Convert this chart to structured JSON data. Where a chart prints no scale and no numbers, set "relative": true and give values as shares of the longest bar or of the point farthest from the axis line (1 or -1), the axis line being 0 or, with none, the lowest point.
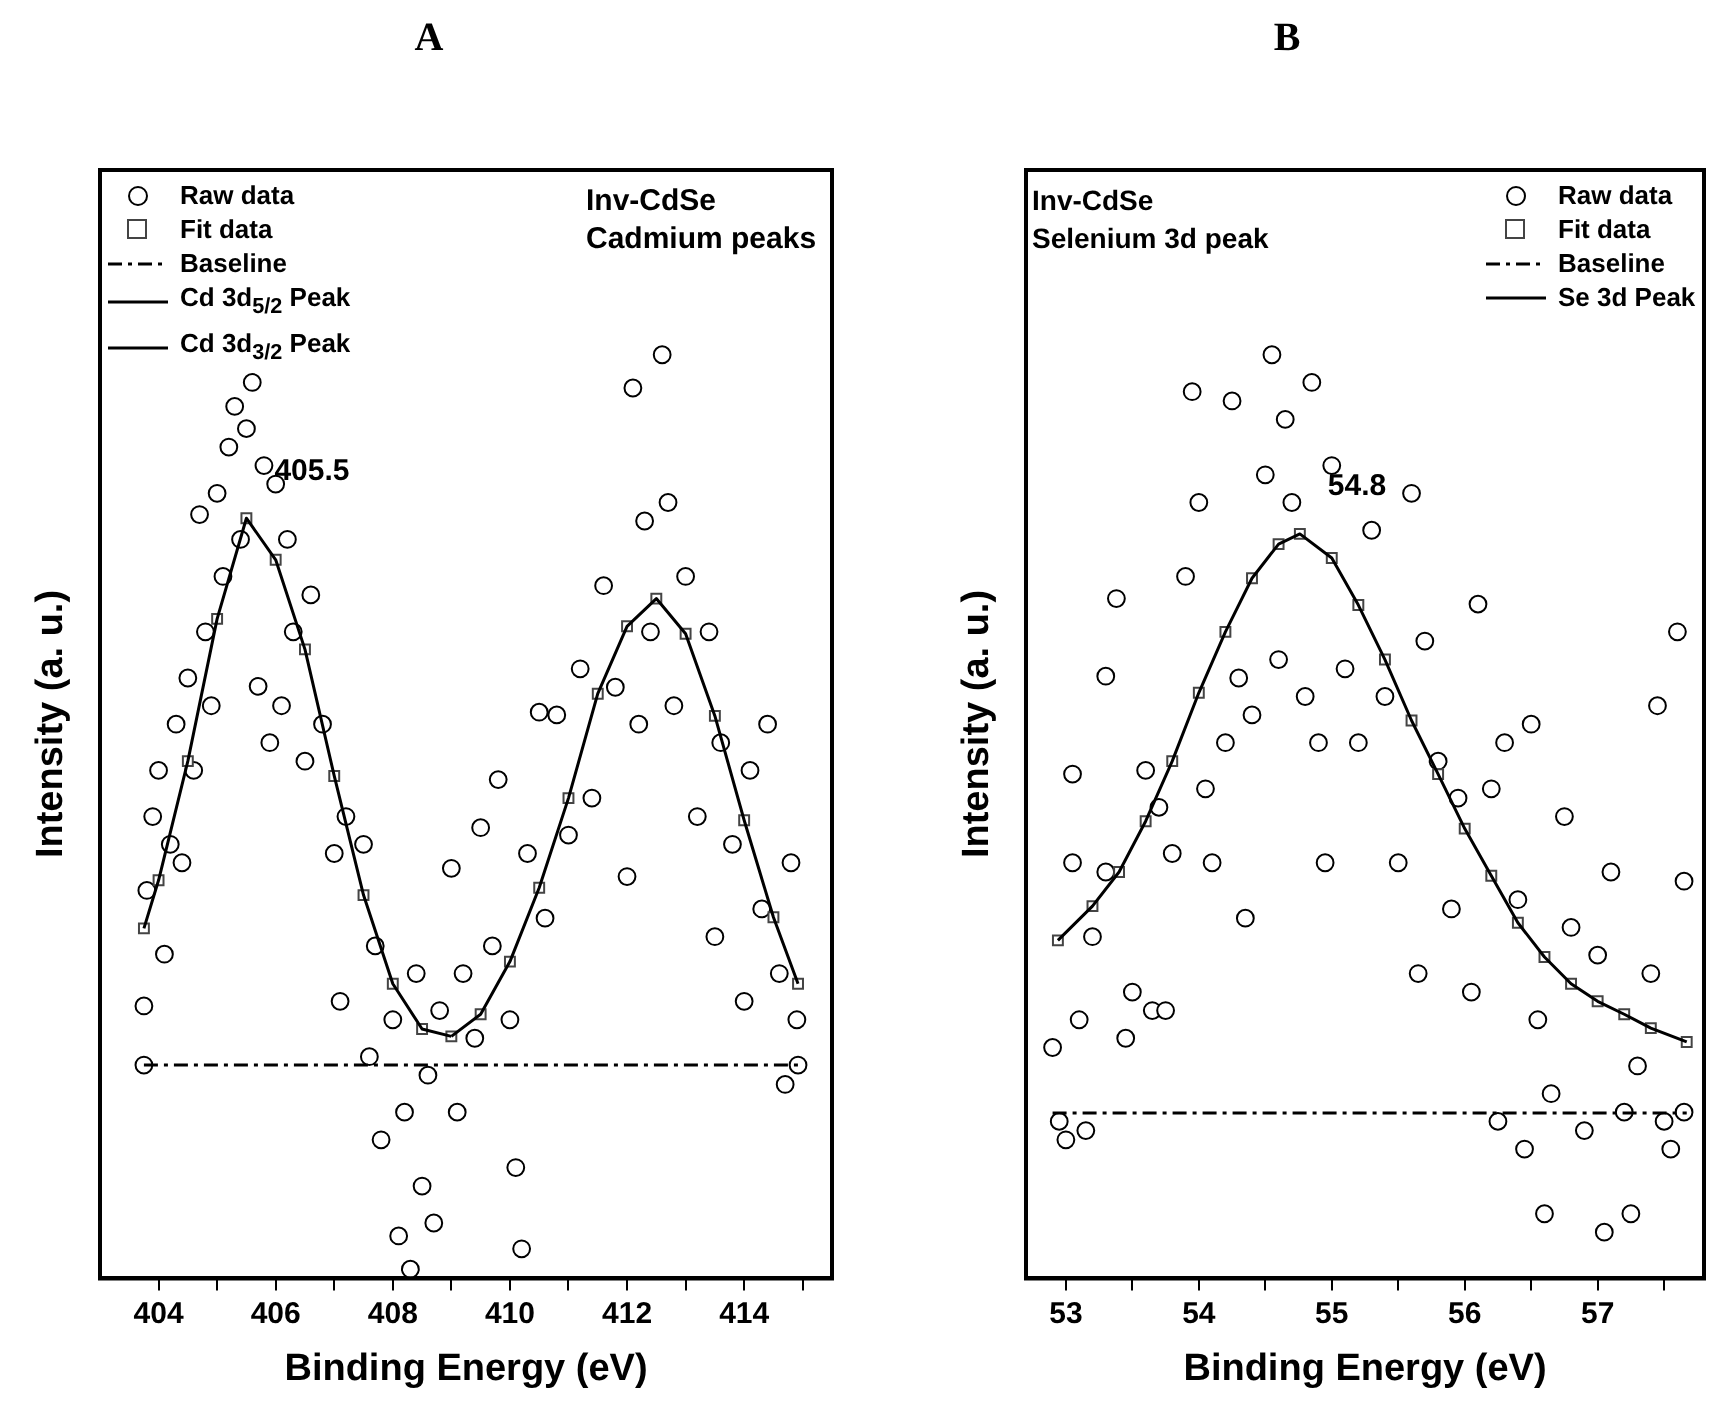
{
  "chart_data": [
    {
      "type": "scatter",
      "title": "A",
      "xlabel": "Binding Energy (eV)",
      "ylabel": "Intensity (a. u.)",
      "relative": true,
      "legend": "top left",
      "xlim": [
        403,
        415.5
      ],
      "xticks": [
        404,
        {
          "value": 405,
          "label": null
        },
        406,
        {
          "value": 407,
          "label": null
        },
        408,
        {
          "value": 409,
          "label": null
        },
        410,
        {
          "value": 411,
          "label": null
        },
        412,
        {
          "value": 413,
          "label": null
        },
        414,
        {
          "value": 415,
          "label": null
        }
      ],
      "annotations": [
        "Inv-CdSe",
        "Cadmium peaks",
        {
          "text": "405.5",
          "x": 405.5,
          "y": 0.823
        }
      ],
      "series": [
        {
          "name": "Raw data",
          "type": "scatter",
          "marker": "circle",
          "color": "#000000",
          "x": [
            403.75,
            403.75,
            403.8,
            403.9,
            404.0,
            404.1,
            404.2,
            404.3,
            404.4,
            404.5,
            404.6,
            404.7,
            404.8,
            404.9,
            405.0,
            405.1,
            405.2,
            405.3,
            405.4,
            405.5,
            405.6,
            405.7,
            405.8,
            405.9,
            406.0,
            406.1,
            406.2,
            406.3,
            406.5,
            406.6,
            406.8,
            407.0,
            407.1,
            407.2,
            407.5,
            407.6,
            407.7,
            407.8,
            408.0,
            408.1,
            408.2,
            408.3,
            408.4,
            408.5,
            408.6,
            408.7,
            408.8,
            409.0,
            409.1,
            409.2,
            409.4,
            409.5,
            409.7,
            409.8,
            410.0,
            410.1,
            410.2,
            410.3,
            410.5,
            410.6,
            410.8,
            411.0,
            411.2,
            411.4,
            411.6,
            411.8,
            412.0,
            412.1,
            412.2,
            412.3,
            412.4,
            412.6,
            412.7,
            412.8,
            413.0,
            413.2,
            413.4,
            413.5,
            413.6,
            413.8,
            414.0,
            414.1,
            414.3,
            414.4,
            414.6,
            414.7,
            414.8,
            414.9,
            414.92
          ],
          "values": [
            0.231,
            0.295,
            0.42,
            0.5,
            0.55,
            0.351,
            0.47,
            0.6,
            0.45,
            0.65,
            0.55,
            0.827,
            0.7,
            0.62,
            0.85,
            0.76,
            0.9,
            0.944,
            0.8,
            0.92,
            0.97,
            0.641,
            0.88,
            0.58,
            0.86,
            0.62,
            0.8,
            0.7,
            0.56,
            0.74,
            0.6,
            0.46,
            0.3,
            0.5,
            0.47,
            0.24,
            0.36,
            0.15,
            0.28,
            0.046,
            0.18,
            0.01,
            0.33,
            0.1,
            0.22,
            0.06,
            0.29,
            0.444,
            0.18,
            0.33,
            0.26,
            0.488,
            0.36,
            0.54,
            0.28,
            0.12,
            0.032,
            0.46,
            0.613,
            0.39,
            0.61,
            0.48,
            0.66,
            0.52,
            0.75,
            0.64,
            0.435,
            0.964,
            0.6,
            0.82,
            0.7,
            1.0,
            0.84,
            0.62,
            0.76,
            0.5,
            0.7,
            0.37,
            0.58,
            0.47,
            0.3,
            0.55,
            0.4,
            0.6,
            0.33,
            0.21,
            0.45,
            0.28,
            0.231
          ]
        },
        {
          "name": "Fit data",
          "type": "scatter",
          "marker": "square",
          "color": "#444444",
          "x": [
            403.75,
            404.0,
            404.5,
            405.0,
            405.5,
            406.0,
            406.5,
            407.0,
            407.5,
            408.0,
            408.5,
            409.0,
            409.5,
            410.0,
            410.5,
            411.0,
            411.5,
            412.0,
            412.5,
            413.0,
            413.5,
            414.0,
            414.5,
            414.92
          ],
          "values": [
            0.379,
            0.431,
            0.56,
            0.714,
            0.823,
            0.778,
            0.681,
            0.544,
            0.415,
            0.319,
            0.27,
            0.262,
            0.286,
            0.343,
            0.423,
            0.52,
            0.633,
            0.706,
            0.736,
            0.698,
            0.609,
            0.496,
            0.391,
            0.319
          ]
        },
        {
          "name": "Baseline",
          "type": "line",
          "marker": "none",
          "line_style": "dashed",
          "color": "#000000",
          "x": [
            403.75,
            414.92
          ],
          "values": [
            0.231,
            0.231
          ]
        },
        {
          "name": "Cd 3d$_{5/2}$ Peak",
          "type": "line",
          "marker": "none",
          "line_style": "solid",
          "color": "#000000",
          "x": [
            403.75,
            404.0,
            404.5,
            405.0,
            405.5,
            406.0,
            406.5,
            407.0,
            407.5,
            408.0,
            408.5,
            409.0
          ],
          "values": [
            0.379,
            0.431,
            0.56,
            0.714,
            0.823,
            0.778,
            0.681,
            0.544,
            0.415,
            0.319,
            0.27,
            0.262
          ]
        },
        {
          "name": "Cd 3d$_{3/2}$ Peak",
          "type": "line",
          "marker": "none",
          "line_style": "solid",
          "color": "#000000",
          "x": [
            409.0,
            409.5,
            410.0,
            410.5,
            411.0,
            411.5,
            412.0,
            412.5,
            413.0,
            413.5,
            414.0,
            414.5,
            414.92
          ],
          "values": [
            0.262,
            0.286,
            0.343,
            0.423,
            0.52,
            0.633,
            0.706,
            0.736,
            0.698,
            0.609,
            0.496,
            0.391,
            0.319
          ]
        }
      ]
    },
    {
      "type": "scatter",
      "title": "B",
      "xlabel": "Binding Energy (eV)",
      "ylabel": "Intensity (a. u.)",
      "relative": true,
      "legend": "top right",
      "xlim": [
        52.7,
        57.8
      ],
      "xticks": [
        53,
        {
          "value": 53.5,
          "label": null
        },
        54,
        {
          "value": 54.5,
          "label": null
        },
        55,
        {
          "value": 55.5,
          "label": null
        },
        56,
        {
          "value": 56.5,
          "label": null
        },
        57,
        {
          "value": 57.5,
          "label": null
        }
      ],
      "annotations": [
        "Inv-CdSe",
        "Selenium 3d peak",
        {
          "text": "54.8",
          "x": 54.76,
          "y": 0.806
        }
      ],
      "series": [
        {
          "name": "Raw data",
          "type": "scatter",
          "marker": "circle",
          "color": "#000000",
          "x": [
            52.9,
            52.95,
            53.0,
            53.05,
            53.05,
            53.1,
            53.15,
            53.2,
            53.3,
            53.3,
            53.38,
            53.45,
            53.5,
            53.6,
            53.65,
            53.7,
            53.75,
            53.8,
            53.9,
            53.95,
            54.0,
            54.05,
            54.1,
            54.2,
            54.25,
            54.3,
            54.35,
            54.4,
            54.5,
            54.55,
            54.6,
            54.65,
            54.7,
            54.8,
            54.85,
            54.9,
            54.95,
            55.0,
            55.1,
            55.2,
            55.3,
            55.4,
            55.5,
            55.6,
            55.65,
            55.7,
            55.8,
            55.9,
            55.95,
            56.05,
            56.1,
            56.2,
            56.25,
            56.3,
            56.4,
            56.45,
            56.5,
            56.55,
            56.6,
            56.65,
            56.75,
            56.8,
            56.9,
            57.0,
            57.05,
            57.1,
            57.2,
            57.25,
            57.3,
            57.4,
            57.45,
            57.5,
            57.55,
            57.6,
            57.65,
            57.65
          ],
          "values": [
            0.25,
            0.17,
            0.15,
            0.546,
            0.45,
            0.28,
            0.16,
            0.37,
            0.44,
            0.652,
            0.736,
            0.26,
            0.31,
            0.55,
            0.29,
            0.51,
            0.29,
            0.46,
            0.76,
            0.96,
            0.84,
            0.53,
            0.45,
            0.58,
            0.95,
            0.65,
            0.39,
            0.61,
            0.87,
            1.0,
            0.67,
            0.93,
            0.84,
            0.63,
            0.97,
            0.58,
            0.45,
            0.88,
            0.66,
            0.58,
            0.81,
            0.63,
            0.45,
            0.85,
            0.33,
            0.69,
            0.56,
            0.4,
            0.52,
            0.31,
            0.73,
            0.53,
            0.17,
            0.58,
            0.41,
            0.14,
            0.6,
            0.28,
            0.07,
            0.2,
            0.5,
            0.38,
            0.16,
            0.35,
            0.05,
            0.44,
            0.18,
            0.07,
            0.23,
            0.33,
            0.62,
            0.17,
            0.14,
            0.7,
            0.43,
            0.18
          ]
        },
        {
          "name": "Fit data",
          "type": "scatter",
          "marker": "square",
          "color": "#444444",
          "x": [
            52.94,
            53.2,
            53.4,
            53.6,
            53.8,
            54.0,
            54.2,
            54.4,
            54.6,
            54.76,
            55.0,
            55.2,
            55.4,
            55.6,
            55.8,
            56.0,
            56.2,
            56.4,
            56.6,
            56.8,
            57.0,
            57.2,
            57.4,
            57.67
          ],
          "values": [
            0.366,
            0.403,
            0.44,
            0.495,
            0.56,
            0.634,
            0.7,
            0.758,
            0.795,
            0.806,
            0.78,
            0.729,
            0.67,
            0.604,
            0.546,
            0.487,
            0.436,
            0.385,
            0.348,
            0.319,
            0.3,
            0.286,
            0.271,
            0.256
          ]
        },
        {
          "name": "Baseline",
          "type": "line",
          "marker": "none",
          "line_style": "dashed",
          "color": "#000000",
          "x": [
            52.9,
            57.67
          ],
          "values": [
            0.179,
            0.179
          ]
        },
        {
          "name": "Se 3d Peak",
          "type": "line",
          "marker": "none",
          "line_style": "solid",
          "color": "#000000",
          "x": [
            52.94,
            53.2,
            53.4,
            53.6,
            53.8,
            54.0,
            54.2,
            54.4,
            54.6,
            54.76,
            55.0,
            55.2,
            55.4,
            55.6,
            55.8,
            56.0,
            56.2,
            56.4,
            56.6,
            56.8,
            57.0,
            57.2,
            57.4,
            57.67
          ],
          "values": [
            0.366,
            0.403,
            0.44,
            0.495,
            0.56,
            0.634,
            0.7,
            0.758,
            0.795,
            0.806,
            0.78,
            0.729,
            0.67,
            0.604,
            0.546,
            0.487,
            0.436,
            0.385,
            0.348,
            0.319,
            0.3,
            0.286,
            0.271,
            0.256
          ]
        }
      ]
    }
  ]
}
